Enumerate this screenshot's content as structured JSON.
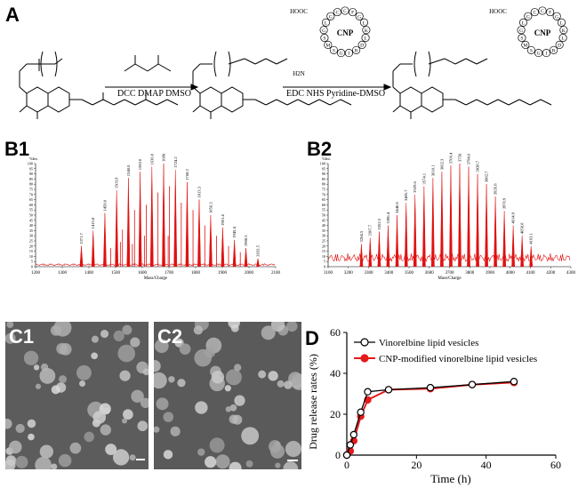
{
  "panel_labels": {
    "a": "A",
    "b1": "B1",
    "b2": "B2",
    "c1": "C1",
    "c2": "C2",
    "d": "D"
  },
  "scheme": {
    "reagent_step1": "DCC DMAP DMSO",
    "reagent_step2": "EDC NHS Pyridine-DMSO",
    "cnp_label": "CNP",
    "cooh": "HOOC",
    "amine": "H2N",
    "peptide_residues": [
      "C",
      "F",
      "G",
      "L",
      "K",
      "L",
      "D",
      "R",
      "I",
      "G",
      "S",
      "M",
      "S",
      "G",
      "L",
      "G",
      "C"
    ]
  },
  "colors": {
    "spectrum": "#e01010",
    "open_series": "#000000",
    "filled_series": "#e61a1a",
    "tem_bg": "#5a5a5a"
  },
  "chart_data": [
    {
      "type": "line",
      "panel": "B1",
      "x_axis_label": "Mass/Charge",
      "y_axis_label": "%Int.",
      "xlim": [
        1200,
        2100
      ],
      "ylim": [
        0,
        100
      ],
      "x_ticks": [
        1200,
        1300,
        1400,
        1500,
        1600,
        1700,
        1800,
        1900,
        2000,
        2100
      ],
      "y_ticks": [
        0,
        5,
        10,
        15,
        20,
        25,
        30,
        35,
        40,
        45,
        50,
        55,
        60,
        65,
        70,
        75,
        80,
        85,
        90,
        95,
        100
      ],
      "peaks": [
        {
          "x": 1371.7,
          "y": 20
        },
        {
          "x": 1415.8,
          "y": 35
        },
        {
          "x": 1459.8,
          "y": 52
        },
        {
          "x": 1503.9,
          "y": 74
        },
        {
          "x": 1548.0,
          "y": 86
        },
        {
          "x": 1592.0,
          "y": 92
        },
        {
          "x": 1636.0,
          "y": 97
        },
        {
          "x": 1680.1,
          "y": 100
        },
        {
          "x": 1724.2,
          "y": 94
        },
        {
          "x": 1768.2,
          "y": 82
        },
        {
          "x": 1813.3,
          "y": 65
        },
        {
          "x": 1856.3,
          "y": 50
        },
        {
          "x": 1901.4,
          "y": 38
        },
        {
          "x": 1945.4,
          "y": 26
        },
        {
          "x": 1988.5,
          "y": 18
        },
        {
          "x": 2033.5,
          "y": 8
        }
      ],
      "minor_peaks": [
        {
          "x": 1481.8,
          "y": 18
        },
        {
          "x": 1525.8,
          "y": 36
        },
        {
          "x": 1517.8,
          "y": 24
        },
        {
          "x": 1562.9,
          "y": 22
        },
        {
          "x": 1571.0,
          "y": 55
        },
        {
          "x": 1607.9,
          "y": 30
        },
        {
          "x": 1614.9,
          "y": 60
        },
        {
          "x": 1658.9,
          "y": 72
        },
        {
          "x": 1702.1,
          "y": 78
        },
        {
          "x": 1697.1,
          "y": 30
        },
        {
          "x": 1746.2,
          "y": 62
        },
        {
          "x": 1790.2,
          "y": 55
        },
        {
          "x": 1834.3,
          "y": 40
        },
        {
          "x": 1878.3,
          "y": 30
        },
        {
          "x": 1923.4,
          "y": 20
        },
        {
          "x": 1967.4,
          "y": 14
        }
      ]
    },
    {
      "type": "line",
      "panel": "B2",
      "x_axis_label": "Mass/Charge",
      "y_axis_label": "%Int.",
      "xlim": [
        3100,
        4300
      ],
      "ylim": [
        0,
        100
      ],
      "x_ticks": [
        3100,
        3200,
        3300,
        3400,
        3500,
        3600,
        3700,
        3800,
        3900,
        4000,
        4100,
        4200,
        4300
      ],
      "y_ticks": [
        0,
        5,
        10,
        15,
        20,
        25,
        30,
        35,
        40,
        45,
        50,
        55,
        60,
        65,
        70,
        75,
        80,
        85,
        90,
        95,
        100
      ],
      "peaks": [
        {
          "x": 3264.5,
          "y": 22
        },
        {
          "x": 3307.7,
          "y": 28
        },
        {
          "x": 3352.5,
          "y": 34
        },
        {
          "x": 3396.4,
          "y": 40
        },
        {
          "x": 3440.8,
          "y": 50
        },
        {
          "x": 3485.7,
          "y": 62
        },
        {
          "x": 3529.6,
          "y": 70
        },
        {
          "x": 3574.1,
          "y": 78
        },
        {
          "x": 3618.1,
          "y": 86
        },
        {
          "x": 3662.3,
          "y": 92
        },
        {
          "x": 3706.4,
          "y": 98
        },
        {
          "x": 3750.5,
          "y": 100
        },
        {
          "x": 3794.6,
          "y": 97
        },
        {
          "x": 3838.7,
          "y": 90
        },
        {
          "x": 3882.7,
          "y": 80
        },
        {
          "x": 3926.8,
          "y": 68
        },
        {
          "x": 3970.9,
          "y": 54
        },
        {
          "x": 4014.9,
          "y": 40
        },
        {
          "x": 4058.8,
          "y": 30
        },
        {
          "x": 4103.1,
          "y": 20
        }
      ]
    },
    {
      "type": "line",
      "panel": "D",
      "title": "",
      "xlabel": "Time (h)",
      "ylabel": "Drug release rates (%)",
      "xlim": [
        0,
        60
      ],
      "ylim": [
        0,
        60
      ],
      "x_ticks": [
        0,
        20,
        40,
        60
      ],
      "y_ticks": [
        0,
        20,
        40,
        60
      ],
      "legend_position": "top-right",
      "series": [
        {
          "name": "Vinorelbine lipid vesicles",
          "marker": "open-circle",
          "x": [
            0,
            1,
            2,
            4,
            6,
            12,
            24,
            36,
            48
          ],
          "y": [
            0,
            5,
            10,
            21,
            31,
            32,
            33,
            34.5,
            36
          ]
        },
        {
          "name": "CNP-modified vinorelbine lipid vesicles",
          "marker": "filled-circle",
          "x": [
            0,
            1,
            2,
            4,
            6,
            12,
            24,
            36,
            48
          ],
          "y": [
            0,
            2,
            7,
            19,
            27,
            32,
            32.5,
            34.5,
            35.5
          ]
        }
      ]
    }
  ]
}
